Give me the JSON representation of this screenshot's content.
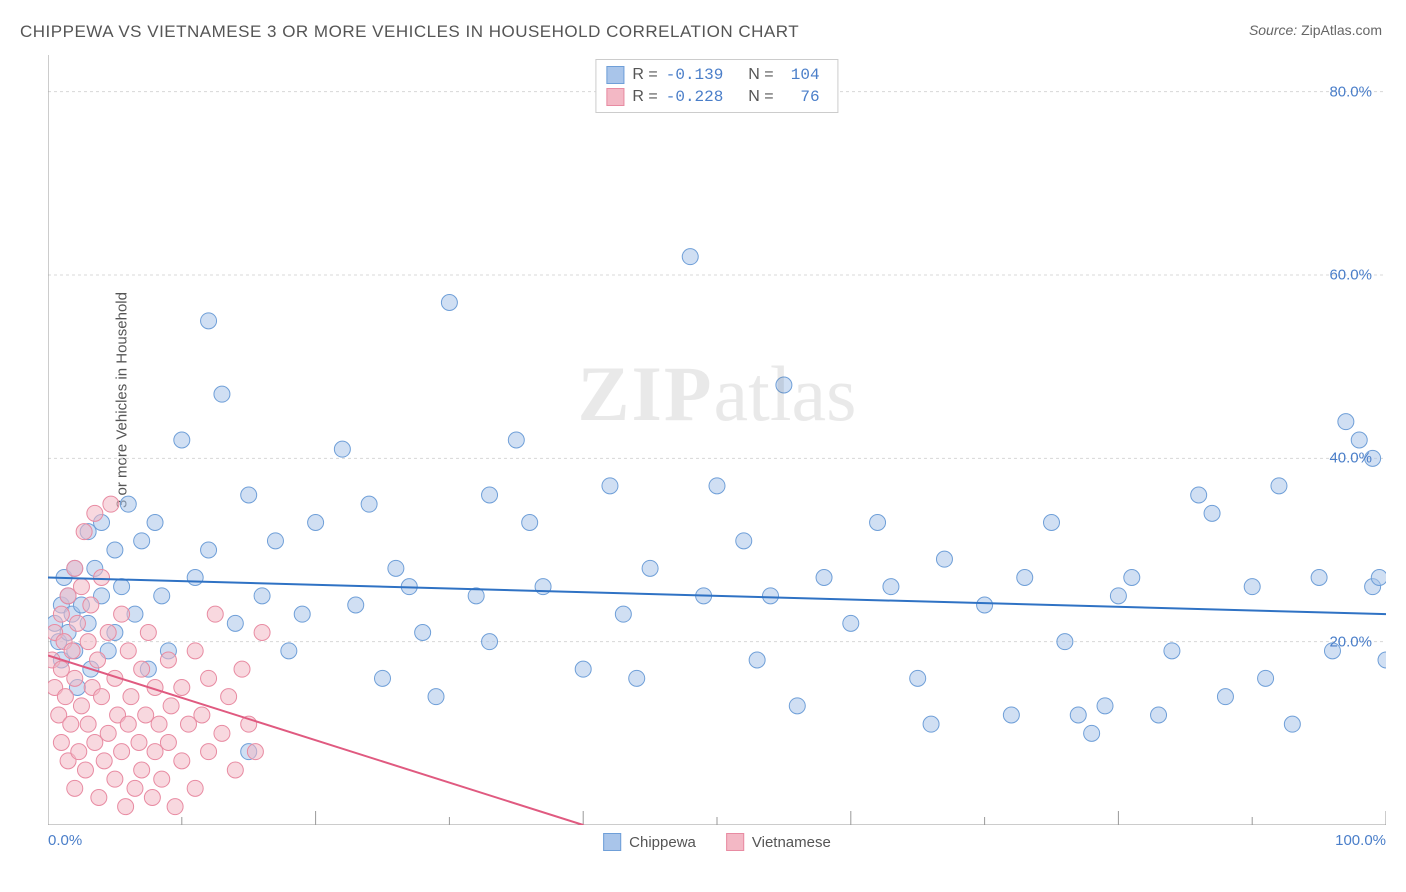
{
  "title": "CHIPPEWA VS VIETNAMESE 3 OR MORE VEHICLES IN HOUSEHOLD CORRELATION CHART",
  "source_label": "Source:",
  "source_value": "ZipAtlas.com",
  "ylabel": "3 or more Vehicles in Household",
  "watermark_a": "ZIP",
  "watermark_b": "atlas",
  "chart": {
    "type": "scatter",
    "xlim": [
      0,
      100
    ],
    "ylim": [
      0,
      84
    ],
    "x_ticks_major": [
      0,
      20,
      40,
      60,
      80,
      100
    ],
    "x_ticks_minor": [
      10,
      30,
      50,
      70,
      90
    ],
    "y_grid": [
      20,
      40,
      60,
      80
    ],
    "x_tick_labels": {
      "0": "0.0%",
      "100": "100.0%"
    },
    "y_tick_labels": {
      "20": "20.0%",
      "40": "40.0%",
      "60": "60.0%",
      "80": "80.0%"
    },
    "grid_color": "#d8d8d8",
    "axis_color": "#999999",
    "tick_label_color": "#4a7ec9",
    "background_color": "#ffffff",
    "marker_radius": 8,
    "marker_opacity": 0.55,
    "line_width": 2,
    "series": [
      {
        "name": "Chippewa",
        "color_fill": "#a9c5ea",
        "color_stroke": "#6f9fd8",
        "line_color": "#2f72c4",
        "R": "-0.139",
        "N": "104",
        "trend": {
          "x1": 0,
          "y1": 27.0,
          "x2": 100,
          "y2": 23.0
        },
        "points": [
          [
            0.5,
            22
          ],
          [
            0.8,
            20
          ],
          [
            1,
            24
          ],
          [
            1,
            18
          ],
          [
            1.2,
            27
          ],
          [
            1.5,
            21
          ],
          [
            1.5,
            25
          ],
          [
            1.8,
            23
          ],
          [
            2,
            19
          ],
          [
            2,
            28
          ],
          [
            2.2,
            15
          ],
          [
            2.5,
            24
          ],
          [
            3,
            32
          ],
          [
            3,
            22
          ],
          [
            3.2,
            17
          ],
          [
            3.5,
            28
          ],
          [
            4,
            33
          ],
          [
            4,
            25
          ],
          [
            4.5,
            19
          ],
          [
            5,
            30
          ],
          [
            5,
            21
          ],
          [
            5.5,
            26
          ],
          [
            6,
            35
          ],
          [
            6.5,
            23
          ],
          [
            7,
            31
          ],
          [
            7.5,
            17
          ],
          [
            8,
            33
          ],
          [
            8.5,
            25
          ],
          [
            9,
            19
          ],
          [
            10,
            42
          ],
          [
            11,
            27
          ],
          [
            12,
            30
          ],
          [
            12,
            55
          ],
          [
            13,
            47
          ],
          [
            14,
            22
          ],
          [
            15,
            36
          ],
          [
            15,
            8
          ],
          [
            16,
            25
          ],
          [
            17,
            31
          ],
          [
            18,
            19
          ],
          [
            19,
            23
          ],
          [
            20,
            33
          ],
          [
            22,
            41
          ],
          [
            23,
            24
          ],
          [
            24,
            35
          ],
          [
            25,
            16
          ],
          [
            26,
            28
          ],
          [
            27,
            26
          ],
          [
            28,
            21
          ],
          [
            29,
            14
          ],
          [
            30,
            57
          ],
          [
            32,
            25
          ],
          [
            33,
            36
          ],
          [
            33,
            20
          ],
          [
            35,
            42
          ],
          [
            36,
            33
          ],
          [
            37,
            26
          ],
          [
            40,
            17
          ],
          [
            42,
            37
          ],
          [
            43,
            23
          ],
          [
            44,
            16
          ],
          [
            45,
            28
          ],
          [
            48,
            62
          ],
          [
            49,
            25
          ],
          [
            50,
            37
          ],
          [
            52,
            31
          ],
          [
            53,
            18
          ],
          [
            54,
            25
          ],
          [
            55,
            48
          ],
          [
            56,
            13
          ],
          [
            58,
            27
          ],
          [
            60,
            22
          ],
          [
            62,
            33
          ],
          [
            63,
            26
          ],
          [
            65,
            16
          ],
          [
            66,
            11
          ],
          [
            67,
            29
          ],
          [
            70,
            24
          ],
          [
            72,
            12
          ],
          [
            73,
            27
          ],
          [
            75,
            33
          ],
          [
            76,
            20
          ],
          [
            77,
            12
          ],
          [
            78,
            10
          ],
          [
            79,
            13
          ],
          [
            80,
            25
          ],
          [
            81,
            27
          ],
          [
            83,
            12
          ],
          [
            84,
            19
          ],
          [
            86,
            36
          ],
          [
            87,
            34
          ],
          [
            88,
            14
          ],
          [
            90,
            26
          ],
          [
            91,
            16
          ],
          [
            92,
            37
          ],
          [
            93,
            11
          ],
          [
            95,
            27
          ],
          [
            96,
            19
          ],
          [
            97,
            44
          ],
          [
            98,
            42
          ],
          [
            99,
            26
          ],
          [
            99,
            40
          ],
          [
            99.5,
            27
          ],
          [
            100,
            18
          ]
        ]
      },
      {
        "name": "Vietnamese",
        "color_fill": "#f3b8c5",
        "color_stroke": "#e88ba2",
        "line_color": "#e05a80",
        "R": "-0.228",
        "N": "76",
        "trend": {
          "x1": 0,
          "y1": 18.5,
          "x2": 40,
          "y2": 0
        },
        "points": [
          [
            0.3,
            18
          ],
          [
            0.5,
            15
          ],
          [
            0.5,
            21
          ],
          [
            0.8,
            12
          ],
          [
            1,
            23
          ],
          [
            1,
            17
          ],
          [
            1,
            9
          ],
          [
            1.2,
            20
          ],
          [
            1.3,
            14
          ],
          [
            1.5,
            25
          ],
          [
            1.5,
            7
          ],
          [
            1.7,
            11
          ],
          [
            1.8,
            19
          ],
          [
            2,
            28
          ],
          [
            2,
            16
          ],
          [
            2,
            4
          ],
          [
            2.2,
            22
          ],
          [
            2.3,
            8
          ],
          [
            2.5,
            26
          ],
          [
            2.5,
            13
          ],
          [
            2.7,
            32
          ],
          [
            2.8,
            6
          ],
          [
            3,
            20
          ],
          [
            3,
            11
          ],
          [
            3.2,
            24
          ],
          [
            3.3,
            15
          ],
          [
            3.5,
            9
          ],
          [
            3.5,
            34
          ],
          [
            3.7,
            18
          ],
          [
            3.8,
            3
          ],
          [
            4,
            27
          ],
          [
            4,
            14
          ],
          [
            4.2,
            7
          ],
          [
            4.5,
            21
          ],
          [
            4.5,
            10
          ],
          [
            4.7,
            35
          ],
          [
            5,
            16
          ],
          [
            5,
            5
          ],
          [
            5.2,
            12
          ],
          [
            5.5,
            23
          ],
          [
            5.5,
            8
          ],
          [
            5.8,
            2
          ],
          [
            6,
            19
          ],
          [
            6,
            11
          ],
          [
            6.2,
            14
          ],
          [
            6.5,
            4
          ],
          [
            6.8,
            9
          ],
          [
            7,
            17
          ],
          [
            7,
            6
          ],
          [
            7.3,
            12
          ],
          [
            7.5,
            21
          ],
          [
            7.8,
            3
          ],
          [
            8,
            15
          ],
          [
            8,
            8
          ],
          [
            8.3,
            11
          ],
          [
            8.5,
            5
          ],
          [
            9,
            18
          ],
          [
            9,
            9
          ],
          [
            9.2,
            13
          ],
          [
            9.5,
            2
          ],
          [
            10,
            15
          ],
          [
            10,
            7
          ],
          [
            10.5,
            11
          ],
          [
            11,
            19
          ],
          [
            11,
            4
          ],
          [
            11.5,
            12
          ],
          [
            12,
            16
          ],
          [
            12,
            8
          ],
          [
            12.5,
            23
          ],
          [
            13,
            10
          ],
          [
            13.5,
            14
          ],
          [
            14,
            6
          ],
          [
            14.5,
            17
          ],
          [
            15,
            11
          ],
          [
            15.5,
            8
          ],
          [
            16,
            21
          ]
        ]
      }
    ]
  },
  "legend": {
    "items": [
      {
        "label": "Chippewa",
        "fill": "#a9c5ea",
        "stroke": "#6f9fd8"
      },
      {
        "label": "Vietnamese",
        "fill": "#f3b8c5",
        "stroke": "#e88ba2"
      }
    ]
  }
}
